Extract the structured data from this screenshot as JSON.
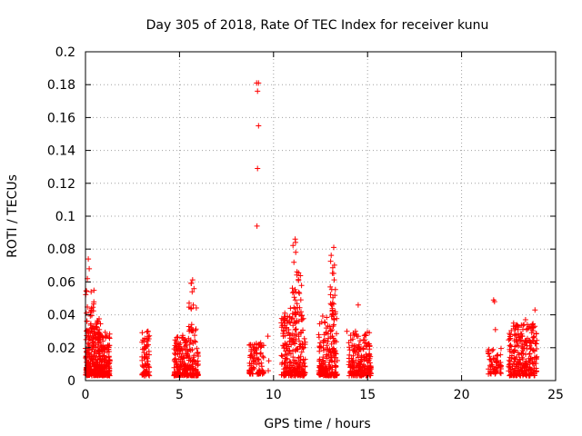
{
  "chart_data": {
    "type": "scatter",
    "title": "Day 305 of 2018, Rate Of TEC Index for receiver kunu",
    "xlabel": "GPS time / hours",
    "ylabel": "ROTI / TECUs",
    "xlim": [
      0,
      25
    ],
    "ylim": [
      0,
      0.2
    ],
    "xticks": [
      0,
      5,
      10,
      15,
      20,
      25
    ],
    "yticks": [
      0,
      0.02,
      0.04,
      0.06,
      0.08,
      0.1,
      0.12,
      0.14,
      0.16,
      0.18,
      0.2
    ],
    "grid": true,
    "marker": "+",
    "color": "#ff0000",
    "clusters": [
      {
        "x": [
          0.0,
          1.3
        ],
        "y": [
          0.003,
          0.03
        ],
        "n": 340
      },
      {
        "x": [
          0.0,
          0.45
        ],
        "y": [
          0.03,
          0.058
        ],
        "n": 30
      },
      {
        "x": [
          0.5,
          0.8
        ],
        "y": [
          0.025,
          0.04
        ],
        "n": 24
      },
      {
        "x": [
          3.0,
          3.4
        ],
        "y": [
          0.003,
          0.03
        ],
        "n": 70
      },
      {
        "x": [
          4.7,
          6.0
        ],
        "y": [
          0.003,
          0.028
        ],
        "n": 230
      },
      {
        "x": [
          5.5,
          5.9
        ],
        "y": [
          0.03,
          0.065
        ],
        "n": 22
      },
      {
        "x": [
          8.7,
          9.5
        ],
        "y": [
          0.004,
          0.024
        ],
        "n": 90
      },
      {
        "x": [
          10.4,
          11.7
        ],
        "y": [
          0.003,
          0.04
        ],
        "n": 230
      },
      {
        "x": [
          11.0,
          11.5
        ],
        "y": [
          0.04,
          0.085
        ],
        "n": 35
      },
      {
        "x": [
          12.4,
          13.4
        ],
        "y": [
          0.003,
          0.04
        ],
        "n": 200
      },
      {
        "x": [
          13.0,
          13.3
        ],
        "y": [
          0.04,
          0.08
        ],
        "n": 26
      },
      {
        "x": [
          14.0,
          15.2
        ],
        "y": [
          0.003,
          0.03
        ],
        "n": 210
      },
      {
        "x": [
          21.4,
          22.1
        ],
        "y": [
          0.004,
          0.02
        ],
        "n": 60
      },
      {
        "x": [
          22.5,
          24.0
        ],
        "y": [
          0.003,
          0.035
        ],
        "n": 260
      }
    ],
    "points": [
      [
        0.15,
        0.074
      ],
      [
        0.2,
        0.068
      ],
      [
        0.1,
        0.062
      ],
      [
        0.05,
        0.041
      ],
      [
        0.3,
        0.054
      ],
      [
        9.1,
        0.181
      ],
      [
        9.2,
        0.181
      ],
      [
        9.15,
        0.176
      ],
      [
        9.2,
        0.155
      ],
      [
        9.15,
        0.129
      ],
      [
        9.12,
        0.094
      ],
      [
        9.7,
        0.027
      ],
      [
        9.75,
        0.012
      ],
      [
        9.72,
        0.006
      ],
      [
        11.15,
        0.086
      ],
      [
        13.2,
        0.081
      ],
      [
        14.5,
        0.046
      ],
      [
        13.9,
        0.03
      ],
      [
        21.7,
        0.049
      ],
      [
        21.75,
        0.048
      ],
      [
        21.8,
        0.031
      ],
      [
        23.9,
        0.043
      ],
      [
        23.4,
        0.037
      ],
      [
        10.9,
        0.044
      ],
      [
        10.6,
        0.041
      ],
      [
        10.5,
        0.037
      ]
    ]
  }
}
